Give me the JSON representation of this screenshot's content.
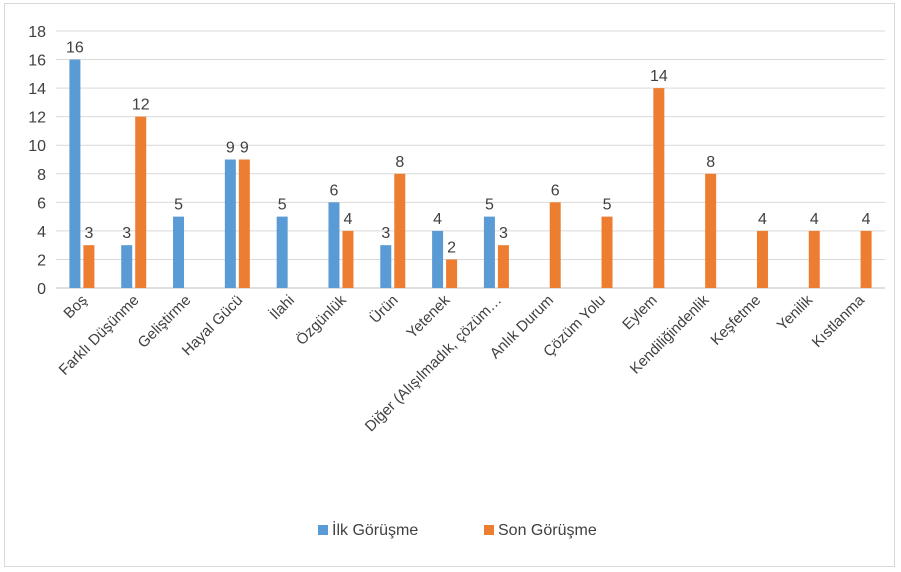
{
  "chart_data": {
    "type": "bar",
    "title": "",
    "xlabel": "",
    "ylabel": "",
    "ylim": [
      0,
      18
    ],
    "yticks": [
      0,
      2,
      4,
      6,
      8,
      10,
      12,
      14,
      16,
      18
    ],
    "grid": true,
    "legend_position": "bottom",
    "categories": [
      "Boş",
      "Farklı Düşünme",
      "Geliştirme",
      "Hayal Gücü",
      "İlahi",
      "Özgünlük",
      "Ürün",
      "Yetenek",
      "Diğer (Alışılmadık, çözüm…",
      "Anlık Durum",
      "Çözüm Yolu",
      "Eylem",
      "Kendiliğindenlik",
      "Keşfetme",
      "Yenilik",
      "Kıstlanma"
    ],
    "series": [
      {
        "name": "İlk Görüşme",
        "color": "#5B9BD5",
        "values": [
          16,
          3,
          5,
          9,
          5,
          6,
          3,
          4,
          5,
          null,
          null,
          null,
          null,
          null,
          null,
          null
        ]
      },
      {
        "name": "Son Görüşme",
        "color": "#ED7D31",
        "values": [
          3,
          12,
          null,
          9,
          null,
          4,
          8,
          2,
          3,
          6,
          5,
          14,
          8,
          4,
          4,
          4
        ]
      }
    ]
  }
}
